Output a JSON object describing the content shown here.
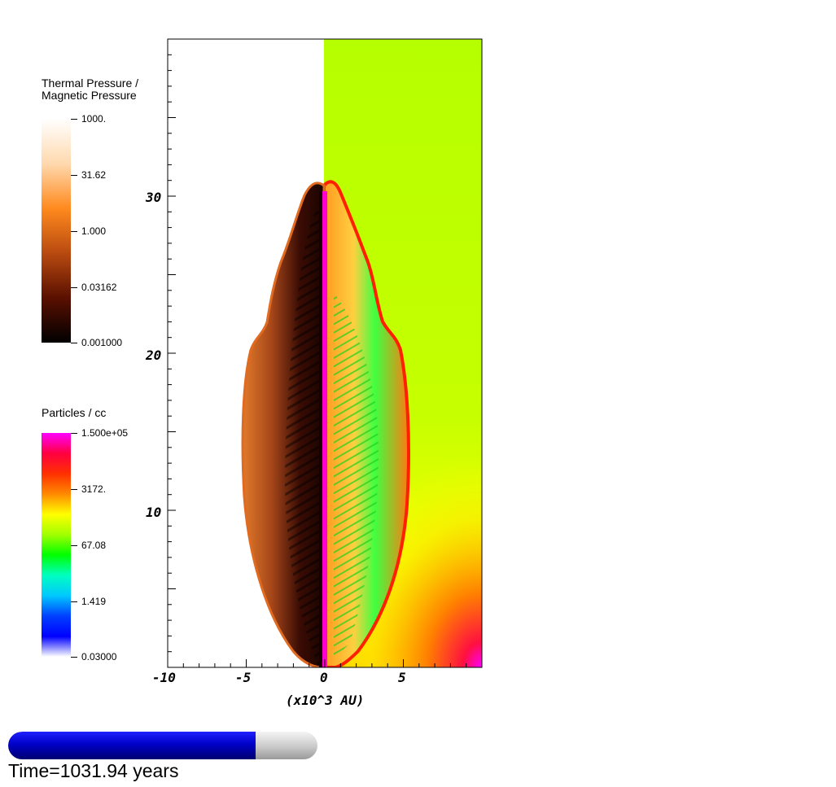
{
  "colorbars": {
    "pressure": {
      "title": "Thermal Pressure /\nMagnetic Pressure",
      "labels": [
        "1000.",
        "31.62",
        "1.000",
        "0.03162",
        "0.001000"
      ],
      "gradient": [
        "#ffffff",
        "#ffd9ae",
        "#ff8a1e",
        "#b84a10",
        "#5a1000",
        "#000000"
      ]
    },
    "density": {
      "title": "Particles / cc",
      "labels": [
        "1.500e+05",
        "3172.",
        "67.08",
        "1.419",
        "0.03000"
      ],
      "gradient": [
        "#ff00ff",
        "#ff0040",
        "#ff3000",
        "#ff8a00",
        "#ffff00",
        "#a0ff00",
        "#00ff00",
        "#00ffc0",
        "#00c8ff",
        "#0040ff",
        "#0000ff",
        "#ffffff"
      ]
    }
  },
  "axes": {
    "x_ticks": [
      "-10",
      "-5",
      "0",
      "5"
    ],
    "y_ticks": [
      "10",
      "20",
      "30"
    ],
    "x_label": "(x10^3 AU)"
  },
  "colors": {
    "ambient_density": "#b6ff00",
    "outflow_edge": "#ff2000",
    "jet_core": "#ff00d0"
  },
  "progress": {
    "fraction": 0.8,
    "fill_color": "#0000c8"
  },
  "time_text": "Time=1031.94 years"
}
